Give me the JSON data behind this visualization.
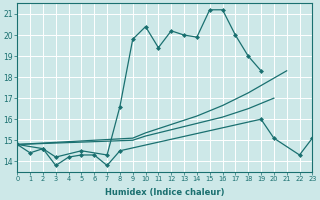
{
  "xlabel": "Humidex (Indice chaleur)",
  "bg_color": "#cde8e8",
  "grid_color": "#ffffff",
  "line_color": "#1a7070",
  "xlim": [
    0,
    23
  ],
  "ylim": [
    13.5,
    21.5
  ],
  "xticks": [
    0,
    1,
    2,
    3,
    4,
    5,
    6,
    7,
    8,
    9,
    10,
    11,
    12,
    13,
    14,
    15,
    16,
    17,
    18,
    19,
    20,
    21,
    22,
    23
  ],
  "yticks": [
    14,
    15,
    16,
    17,
    18,
    19,
    20,
    21
  ],
  "series": [
    {
      "x": [
        0,
        1,
        2,
        3,
        4,
        5,
        6,
        7,
        8,
        19,
        20,
        22,
        23
      ],
      "y": [
        14.8,
        14.4,
        14.6,
        13.8,
        14.2,
        14.3,
        14.3,
        13.8,
        14.5,
        16.0,
        15.1,
        14.3,
        15.1
      ],
      "marker": "D",
      "markersize": 2.0
    },
    {
      "x": [
        0,
        2,
        3,
        5,
        7,
        8,
        9,
        10,
        11,
        12,
        13,
        14,
        15,
        16,
        17,
        18,
        19
      ],
      "y": [
        14.8,
        14.6,
        14.2,
        14.5,
        14.3,
        16.6,
        19.8,
        20.4,
        19.4,
        20.2,
        20.0,
        19.9,
        21.2,
        21.2,
        20.0,
        19.0,
        18.3
      ],
      "marker": "D",
      "markersize": 2.0
    },
    {
      "x": [
        0,
        9,
        10,
        11,
        12,
        13,
        14,
        15,
        16,
        17,
        18,
        19,
        20,
        21
      ],
      "y": [
        14.8,
        15.1,
        15.35,
        15.55,
        15.75,
        15.95,
        16.15,
        16.4,
        16.65,
        16.95,
        17.25,
        17.6,
        17.95,
        18.3
      ],
      "marker": null,
      "markersize": 0
    },
    {
      "x": [
        0,
        9,
        10,
        11,
        12,
        13,
        14,
        15,
        16,
        17,
        18,
        19,
        20
      ],
      "y": [
        14.8,
        15.0,
        15.2,
        15.35,
        15.5,
        15.65,
        15.8,
        15.95,
        16.1,
        16.3,
        16.5,
        16.75,
        17.0
      ],
      "marker": null,
      "markersize": 0
    }
  ]
}
